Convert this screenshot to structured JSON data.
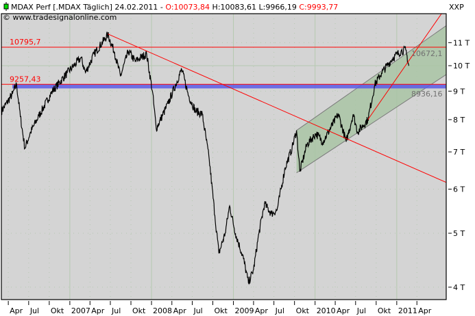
{
  "header": {
    "symbol": "MDAX Perf [.MDAX  Täglich] 24.02.2011 - ",
    "open": "O:10073,84",
    "high": " H:10083,61",
    "low": " L:9966,19",
    "close": " C:9993,77",
    "copyright": "© www.tradesignalonline.com"
  },
  "colors": {
    "background": "#d4d4d4",
    "price": "#000000",
    "support": "#ff0000",
    "band": "#5a5ae6",
    "channel_fill": "#a9c4a4",
    "channel_line": "#7a7a7a",
    "grid": "#b9cbb4",
    "ohlc_red": "#ff0000",
    "legend_icon": "#00dd00"
  },
  "chart_data": {
    "type": "line",
    "yscale": "log",
    "ylim": [
      3800,
      12400
    ],
    "xlim": [
      "2006-03-01",
      "2011-08-10"
    ],
    "y_axis_title": "XXP",
    "yticks": [
      {
        "v": 11000,
        "label": "11 T"
      },
      {
        "v": 10000,
        "label": "10 T"
      },
      {
        "v": 9000,
        "label": "9 T"
      },
      {
        "v": 8000,
        "label": "8 T"
      },
      {
        "v": 7000,
        "label": "7 T"
      },
      {
        "v": 6000,
        "label": "6 T"
      },
      {
        "v": 5000,
        "label": "5 T"
      },
      {
        "v": 4000,
        "label": "4 T"
      }
    ],
    "xticks": [
      {
        "d": "2006-04-01",
        "label": "Apr"
      },
      {
        "d": "2006-07-01",
        "label": "Jul"
      },
      {
        "d": "2006-10-01",
        "label": "Okt"
      },
      {
        "d": "2007-01-01",
        "label": "2007"
      },
      {
        "d": "2007-04-01",
        "label": "Apr"
      },
      {
        "d": "2007-07-01",
        "label": "Jul"
      },
      {
        "d": "2007-10-01",
        "label": "Okt"
      },
      {
        "d": "2008-01-01",
        "label": "2008"
      },
      {
        "d": "2008-04-01",
        "label": "Apr"
      },
      {
        "d": "2008-07-01",
        "label": "Jul"
      },
      {
        "d": "2008-10-01",
        "label": "Okt"
      },
      {
        "d": "2009-01-01",
        "label": "2009"
      },
      {
        "d": "2009-04-01",
        "label": "Apr"
      },
      {
        "d": "2009-07-01",
        "label": "Jul"
      },
      {
        "d": "2009-10-01",
        "label": "Okt"
      },
      {
        "d": "2010-01-01",
        "label": "2010"
      },
      {
        "d": "2010-04-01",
        "label": "Apr"
      },
      {
        "d": "2010-07-01",
        "label": "Jul"
      },
      {
        "d": "2010-10-01",
        "label": "Okt"
      },
      {
        "d": "2011-01-01",
        "label": "2011"
      },
      {
        "d": "2011-04-01",
        "label": "Apr"
      }
    ],
    "grid": true,
    "series": [
      {
        "points": [
          [
            "2006-03-01",
            8275
          ],
          [
            "2006-04-20",
            8900
          ],
          [
            "2006-05-08",
            9257
          ],
          [
            "2006-05-25",
            8100
          ],
          [
            "2006-06-14",
            7110
          ],
          [
            "2006-07-10",
            7600
          ],
          [
            "2006-08-15",
            8120
          ],
          [
            "2006-10-15",
            9000
          ],
          [
            "2006-12-20",
            9700
          ],
          [
            "2007-02-20",
            10330
          ],
          [
            "2007-03-12",
            9720
          ],
          [
            "2007-04-20",
            10500
          ],
          [
            "2007-06-20",
            11370
          ],
          [
            "2007-07-20",
            10560
          ],
          [
            "2007-08-15",
            9570
          ],
          [
            "2007-09-20",
            10620
          ],
          [
            "2007-10-20",
            10180
          ],
          [
            "2007-12-10",
            10500
          ],
          [
            "2008-01-05",
            9000
          ],
          [
            "2008-01-22",
            7710
          ],
          [
            "2008-03-15",
            8550
          ],
          [
            "2008-05-15",
            9850
          ],
          [
            "2008-06-15",
            8820
          ],
          [
            "2008-07-15",
            8300
          ],
          [
            "2008-08-15",
            8180
          ],
          [
            "2008-09-15",
            6780
          ],
          [
            "2008-10-10",
            5390
          ],
          [
            "2008-10-28",
            4600
          ],
          [
            "2008-11-25",
            5000
          ],
          [
            "2008-12-15",
            5600
          ],
          [
            "2009-01-10",
            5000
          ],
          [
            "2009-02-15",
            4500
          ],
          [
            "2009-03-09",
            4070
          ],
          [
            "2009-04-01",
            4300
          ],
          [
            "2009-04-25",
            5000
          ],
          [
            "2009-05-20",
            5650
          ],
          [
            "2009-06-20",
            5420
          ],
          [
            "2009-07-15",
            5500
          ],
          [
            "2009-08-20",
            6550
          ],
          [
            "2009-09-20",
            7110
          ],
          [
            "2009-10-10",
            7650
          ],
          [
            "2009-10-25",
            6450
          ],
          [
            "2009-11-25",
            7210
          ],
          [
            "2010-01-05",
            7550
          ],
          [
            "2010-02-05",
            7300
          ],
          [
            "2010-04-15",
            8180
          ],
          [
            "2010-05-20",
            7300
          ],
          [
            "2010-06-20",
            8180
          ],
          [
            "2010-07-10",
            7600
          ],
          [
            "2010-08-25",
            8000
          ],
          [
            "2010-09-25",
            9250
          ],
          [
            "2010-10-25",
            9700
          ],
          [
            "2010-12-15",
            10330
          ],
          [
            "2011-01-20",
            10620
          ],
          [
            "2011-02-10",
            10672
          ],
          [
            "2011-02-24",
            9993
          ]
        ]
      }
    ],
    "lines": [
      {
        "kind": "horizontal",
        "value": 10795.7,
        "label": "10795,7",
        "color": "#ff0000"
      },
      {
        "kind": "band",
        "value": 9257.43,
        "label": "9257,43",
        "color": "#5a5ae6"
      },
      {
        "kind": "trend",
        "from": [
          "2007-06-20",
          11400
        ],
        "to": [
          "2011-08-10",
          6170
        ],
        "color": "#ff0000"
      },
      {
        "kind": "trend",
        "from": [
          "2010-08-25",
          8000
        ],
        "to": [
          "2011-07-20",
          12400
        ],
        "color": "#ff0000"
      }
    ],
    "channel": {
      "upper": [
        [
          "2009-10-10",
          7650
        ],
        [
          "2011-08-10",
          11800
        ]
      ],
      "lower": [
        [
          "2009-10-10",
          6420
        ],
        [
          "2011-08-10",
          9640
        ]
      ],
      "upper_label": "10672,1",
      "lower_label": "8936,16"
    }
  }
}
